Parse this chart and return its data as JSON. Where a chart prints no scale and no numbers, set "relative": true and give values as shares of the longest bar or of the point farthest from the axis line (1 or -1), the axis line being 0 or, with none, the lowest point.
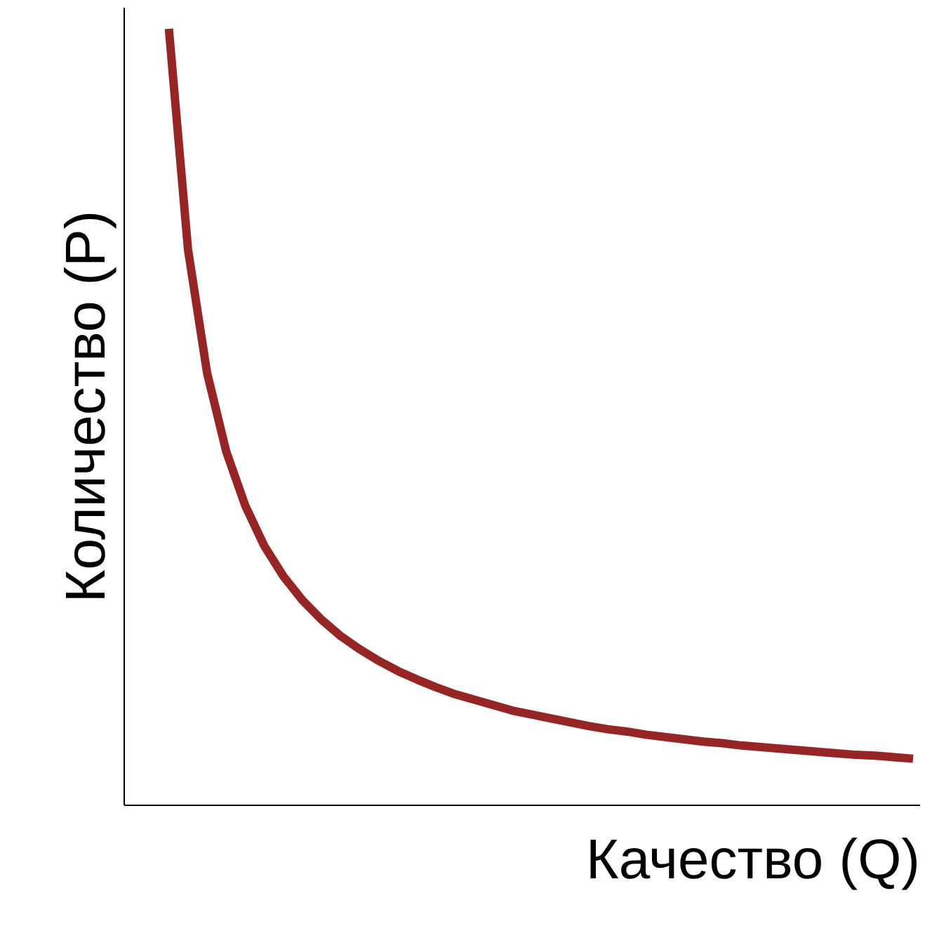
{
  "chart_data": {
    "type": "line",
    "relative": true,
    "xlabel": "Качество (Q)",
    "ylabel": "Количество (P)",
    "categories": [
      null,
      null,
      null,
      null,
      null,
      null,
      null,
      null,
      null,
      null,
      null,
      null,
      null,
      null,
      null,
      null,
      null,
      null,
      null,
      null,
      null,
      null,
      null,
      null,
      null,
      null,
      null,
      null,
      null,
      null,
      null,
      null,
      null,
      null,
      null,
      null,
      null,
      null,
      null,
      null
    ],
    "series": [
      {
        "color": "#962626",
        "values": [
          1.0,
          0.716,
          0.557,
          0.456,
          0.386,
          0.334,
          0.295,
          0.264,
          0.239,
          0.218,
          0.201,
          0.186,
          0.173,
          0.162,
          0.152,
          0.143,
          0.136,
          0.129,
          0.122,
          0.117,
          0.112,
          0.107,
          0.102,
          0.098,
          0.095,
          0.091,
          0.088,
          0.085,
          0.082,
          0.08,
          0.077,
          0.075,
          0.073,
          0.071,
          0.069,
          0.067,
          0.065,
          0.064,
          0.062,
          0.06
        ]
      }
    ],
    "marker": "none",
    "line_style": "solid"
  }
}
